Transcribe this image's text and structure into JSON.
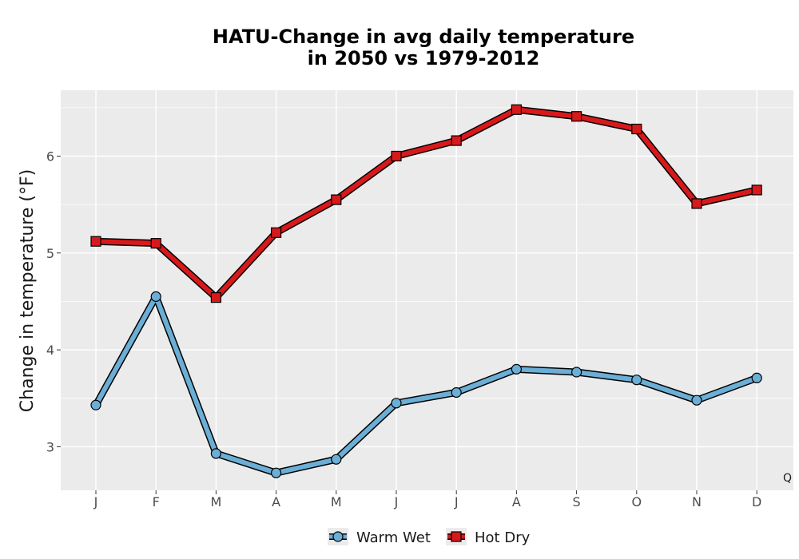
{
  "chart_data": {
    "type": "line",
    "title_line1": "HATU-Change in avg daily temperature",
    "title_line2": "in 2050 vs 1979-2012",
    "xlabel": "",
    "ylabel": "Change in temperature (°F)",
    "categories": [
      "J",
      "F",
      "M",
      "A",
      "M",
      "J",
      "J",
      "A",
      "S",
      "O",
      "N",
      "D"
    ],
    "ylim": [
      2.55,
      6.68
    ],
    "yticks": [
      3,
      4,
      5,
      6
    ],
    "grid": true,
    "legend_position": "bottom",
    "corner_text": "Q",
    "series": [
      {
        "name": "Warm Wet",
        "marker": "circle",
        "color": "#6baed6",
        "values": [
          3.43,
          4.55,
          2.93,
          2.73,
          2.87,
          3.45,
          3.56,
          3.8,
          3.77,
          3.69,
          3.48,
          3.71
        ]
      },
      {
        "name": "Hot Dry",
        "marker": "square",
        "color": "#d7191c",
        "values": [
          5.12,
          5.1,
          4.54,
          5.21,
          5.55,
          6.0,
          6.16,
          6.48,
          6.41,
          6.28,
          5.51,
          5.65
        ]
      }
    ]
  }
}
